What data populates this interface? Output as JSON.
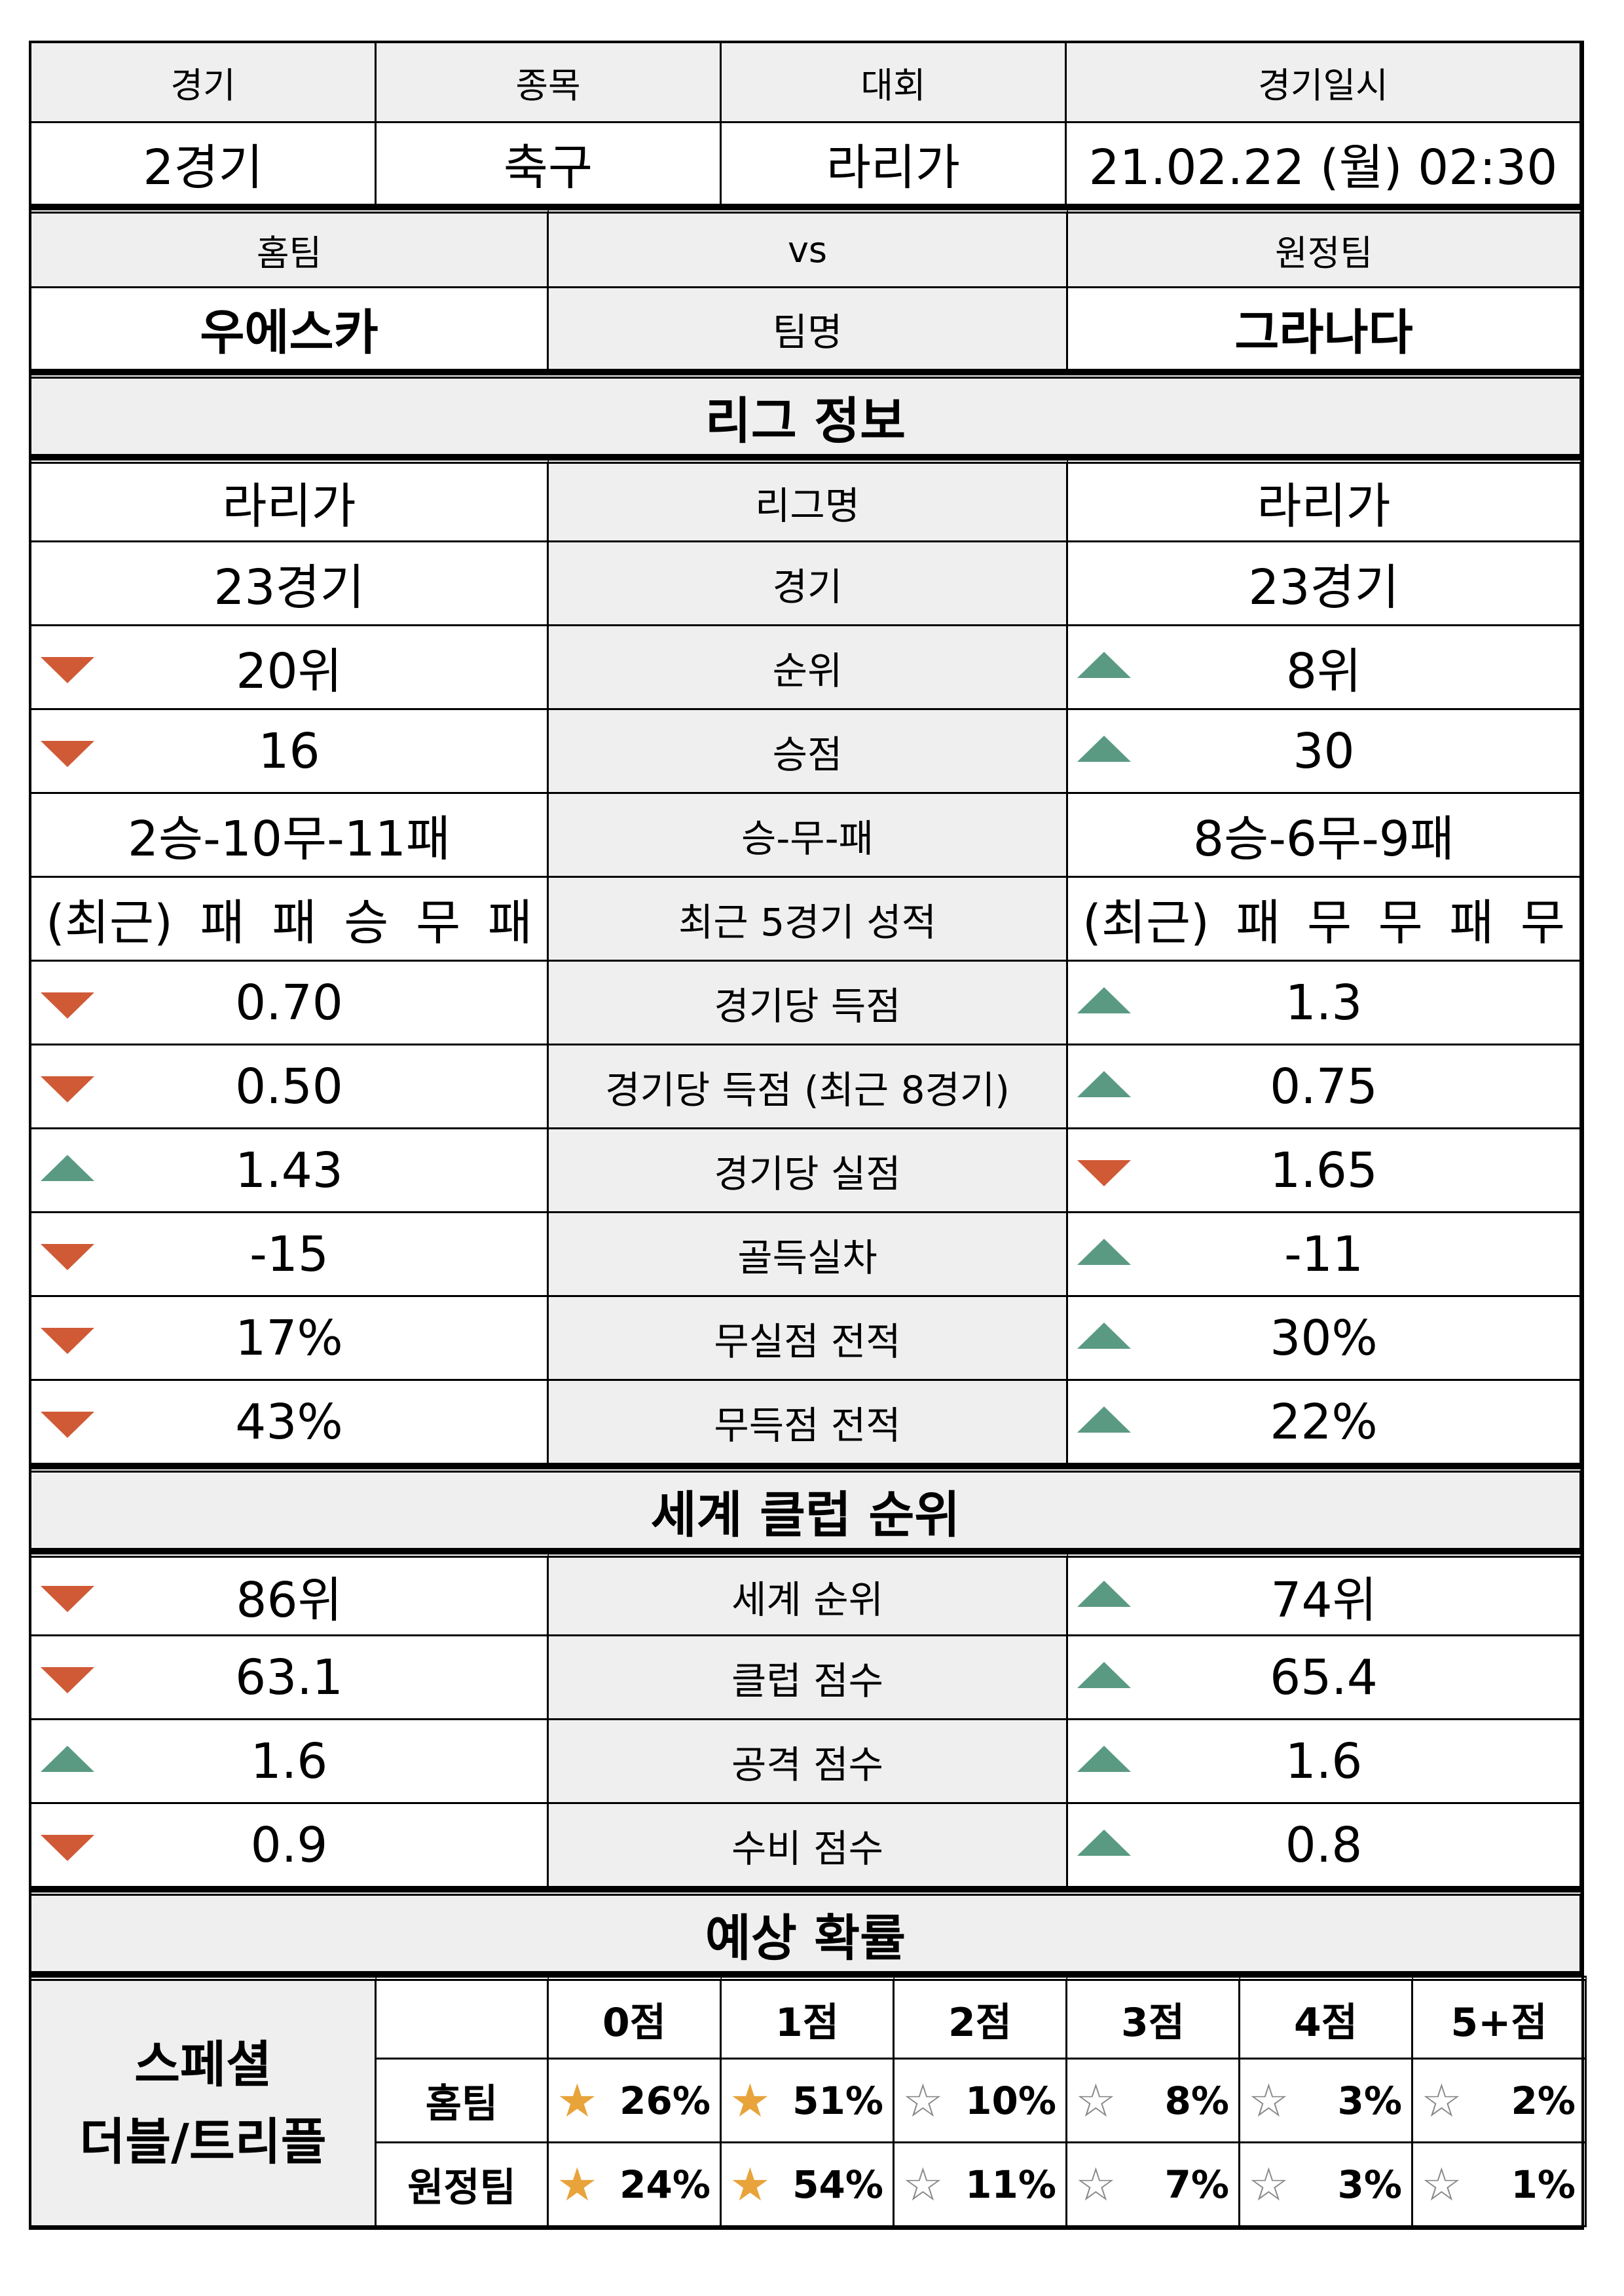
{
  "match": {
    "headers": [
      "경기",
      "종목",
      "대회",
      "경기일시"
    ],
    "values": [
      "2경기",
      "축구",
      "라리가",
      "21.02.22 (월) 02:30"
    ]
  },
  "teams": {
    "home_label": "홈팀",
    "vs_label": "vs",
    "away_label": "원정팀",
    "home_name": "우에스카",
    "name_label": "팀명",
    "away_name": "그라나다"
  },
  "league": {
    "title": "리그 정보",
    "rows": [
      {
        "label": "리그명",
        "home": "라리가",
        "away": "라리가",
        "home_trend": "",
        "away_trend": ""
      },
      {
        "label": "경기",
        "home": "23경기",
        "away": "23경기",
        "home_trend": "",
        "away_trend": ""
      },
      {
        "label": "순위",
        "home": "20위",
        "away": "8위",
        "home_trend": "down",
        "away_trend": "up"
      },
      {
        "label": "승점",
        "home": "16",
        "away": "30",
        "home_trend": "down",
        "away_trend": "up"
      },
      {
        "label": "승-무-패",
        "home": "2승-10무-11패",
        "away": "8승-6무-9패",
        "home_trend": "",
        "away_trend": ""
      }
    ],
    "recent": {
      "label": "최근 5경기 성적",
      "prefix": "(최근)",
      "home": [
        "패",
        "패",
        "승",
        "무",
        "패"
      ],
      "away": [
        "패",
        "무",
        "무",
        "패",
        "무"
      ]
    },
    "stats": [
      {
        "label": "경기당 득점",
        "home": "0.70",
        "away": "1.3",
        "home_trend": "down",
        "away_trend": "up"
      },
      {
        "label": "경기당 득점 (최근 8경기)",
        "home": "0.50",
        "away": "0.75",
        "home_trend": "down",
        "away_trend": "up"
      },
      {
        "label": "경기당 실점",
        "home": "1.43",
        "away": "1.65",
        "home_trend": "up",
        "away_trend": "down"
      },
      {
        "label": "골득실차",
        "home": "-15",
        "away": "-11",
        "home_trend": "down",
        "away_trend": "up"
      },
      {
        "label": "무실점 전적",
        "home": "17%",
        "away": "30%",
        "home_trend": "down",
        "away_trend": "up"
      },
      {
        "label": "무득점 전적",
        "home": "43%",
        "away": "22%",
        "home_trend": "down",
        "away_trend": "up"
      }
    ]
  },
  "world": {
    "title": "세계 클럽 순위",
    "rows": [
      {
        "label": "세계 순위",
        "home": "86위",
        "away": "74위",
        "home_trend": "down",
        "away_trend": "up"
      },
      {
        "label": "클럽 점수",
        "home": "63.1",
        "away": "65.4",
        "home_trend": "down",
        "away_trend": "up"
      },
      {
        "label": "공격 점수",
        "home": "1.6",
        "away": "1.6",
        "home_trend": "up",
        "away_trend": "up"
      },
      {
        "label": "수비 점수",
        "home": "0.9",
        "away": "0.8",
        "home_trend": "down",
        "away_trend": "up"
      }
    ]
  },
  "prediction": {
    "title": "예상 확률",
    "special_line1": "스페셜",
    "special_line2": "더블/트리플",
    "score_headers": [
      "0점",
      "1점",
      "2점",
      "3점",
      "4점",
      "5+점"
    ],
    "rows": [
      {
        "label": "홈팀",
        "values": [
          "26%",
          "51%",
          "10%",
          "8%",
          "3%",
          "2%"
        ],
        "stars": [
          "half",
          "gold",
          "empty",
          "empty",
          "empty",
          "empty"
        ]
      },
      {
        "label": "원정팀",
        "values": [
          "24%",
          "54%",
          "11%",
          "7%",
          "3%",
          "1%"
        ],
        "stars": [
          "half",
          "gold",
          "empty",
          "empty",
          "empty",
          "empty"
        ]
      }
    ]
  },
  "colors": {
    "down": "#d05a36",
    "up": "#5a9a82",
    "header_bg": "#efefef",
    "star_gold": "#e8a33a"
  }
}
